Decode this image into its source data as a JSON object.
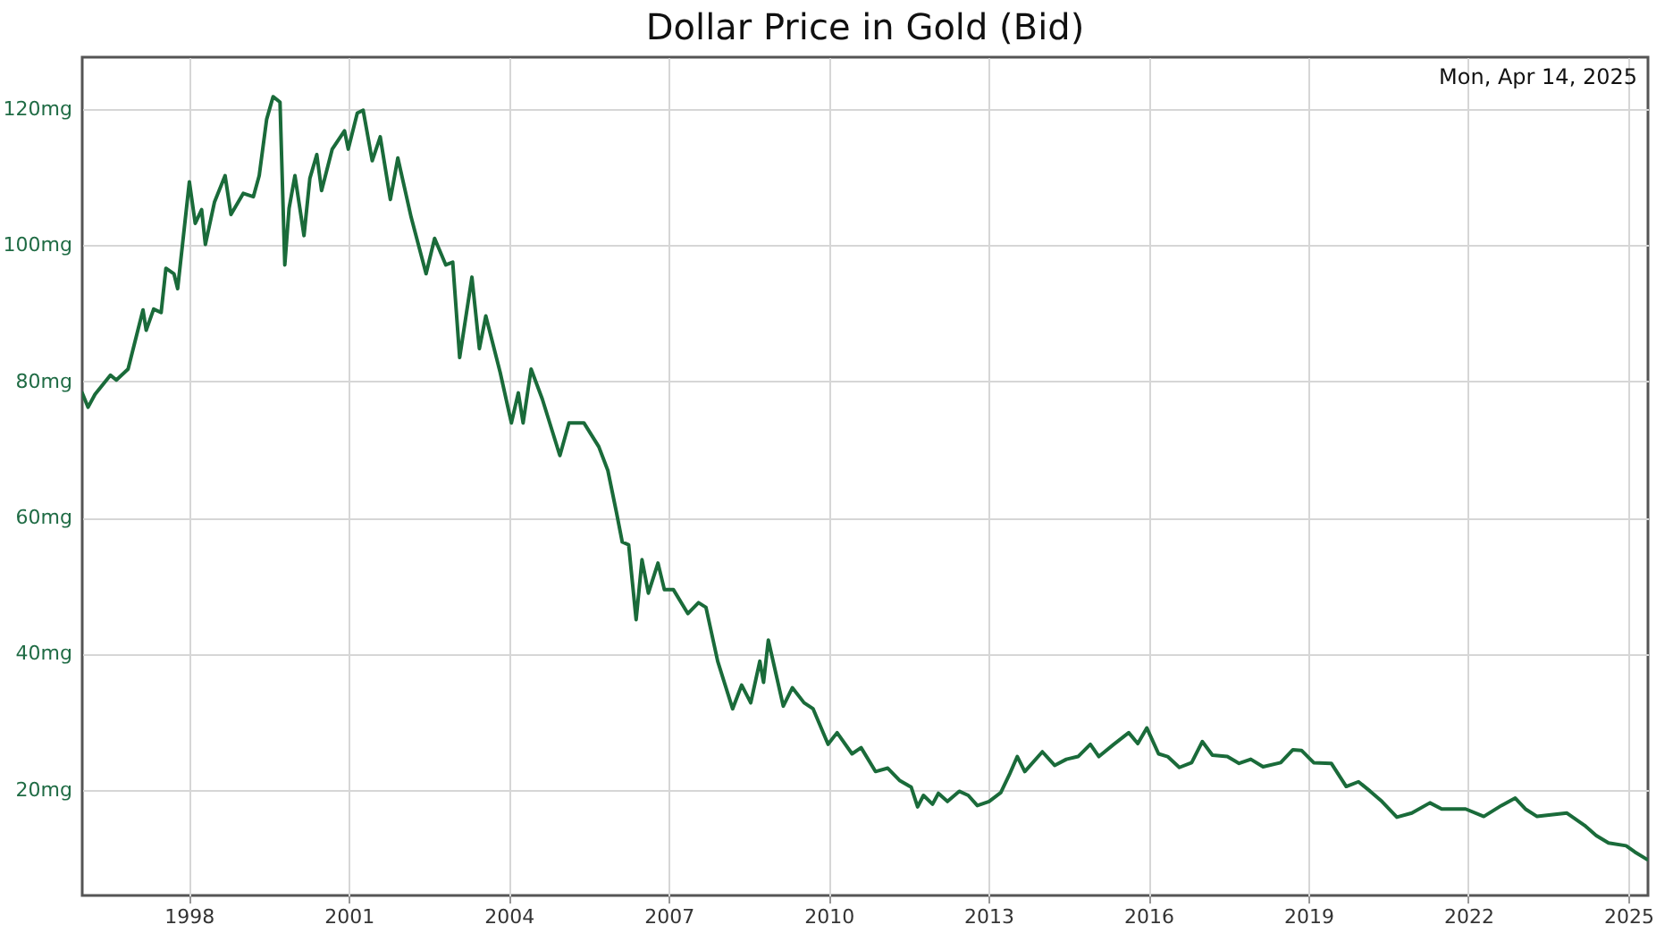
{
  "chart_data": {
    "type": "line",
    "title": "Dollar Price in Gold (Bid)",
    "annotations": [
      "Mon, Apr 14, 2025"
    ],
    "x": [
      1996.0,
      1996.11,
      1996.24,
      1996.53,
      1996.64,
      1996.86,
      1997.14,
      1997.2,
      1997.34,
      1997.48,
      1997.57,
      1997.72,
      1997.79,
      1998.01,
      1998.12,
      1998.24,
      1998.31,
      1998.48,
      1998.68,
      1998.79,
      1999.02,
      1999.21,
      1999.32,
      1999.46,
      1999.58,
      1999.71,
      1999.8,
      1999.88,
      1999.99,
      2000.16,
      2000.27,
      2000.4,
      2000.49,
      2000.69,
      2000.92,
      2000.99,
      2001.16,
      2001.27,
      2001.44,
      2001.59,
      2001.78,
      2001.92,
      2002.17,
      2002.45,
      2002.61,
      2002.82,
      2002.95,
      2003.08,
      2003.31,
      2003.45,
      2003.57,
      2003.84,
      2004.05,
      2004.18,
      2004.27,
      2004.42,
      2004.63,
      2004.96,
      2005.13,
      2005.41,
      2005.69,
      2005.86,
      2006.02,
      2006.13,
      2006.25,
      2006.39,
      2006.5,
      2006.62,
      2006.8,
      2006.92,
      2007.09,
      2007.36,
      2007.56,
      2007.7,
      2007.92,
      2008.2,
      2008.37,
      2008.54,
      2008.71,
      2008.78,
      2008.87,
      2009.15,
      2009.32,
      2009.54,
      2009.71,
      2009.99,
      2010.16,
      2010.44,
      2010.61,
      2010.88,
      2011.11,
      2011.33,
      2011.55,
      2011.67,
      2011.78,
      2011.95,
      2012.06,
      2012.23,
      2012.45,
      2012.62,
      2012.79,
      2013.01,
      2013.23,
      2013.4,
      2013.54,
      2013.68,
      2014.01,
      2014.24,
      2014.46,
      2014.68,
      2014.91,
      2015.07,
      2015.35,
      2015.63,
      2015.8,
      2015.97,
      2016.19,
      2016.36,
      2016.58,
      2016.81,
      2017.01,
      2017.2,
      2017.48,
      2017.7,
      2017.92,
      2018.15,
      2018.48,
      2018.71,
      2018.87,
      2019.1,
      2019.43,
      2019.71,
      2019.94,
      2020.16,
      2020.38,
      2020.66,
      2020.94,
      2021.28,
      2021.5,
      2021.95,
      2022.29,
      2022.62,
      2022.88,
      2023.07,
      2023.29,
      2023.51,
      2023.85,
      2024.18,
      2024.4,
      2024.63,
      2024.96,
      2025.12,
      2025.35
    ],
    "series": [
      {
        "color": "#1a6b3a",
        "values": [
          78.3,
          76.2,
          78.1,
          80.9,
          80.2,
          81.8,
          90.5,
          87.5,
          90.6,
          90.1,
          96.6,
          95.8,
          93.6,
          109.3,
          103.2,
          105.2,
          100.1,
          106.3,
          110.2,
          104.5,
          107.6,
          107.1,
          110.2,
          118.5,
          121.8,
          121.0,
          97.1,
          105.4,
          110.2,
          101.4,
          109.8,
          113.3,
          108.0,
          114.1,
          116.8,
          114.1,
          119.4,
          119.8,
          112.4,
          115.9,
          106.7,
          112.8,
          104.1,
          95.8,
          101.0,
          97.1,
          97.5,
          83.5,
          95.3,
          84.8,
          89.6,
          81.3,
          73.9,
          78.3,
          73.9,
          81.8,
          77.4,
          69.1,
          73.9,
          73.9,
          70.4,
          66.9,
          60.8,
          56.4,
          56.0,
          45.0,
          53.8,
          48.9,
          53.3,
          49.4,
          49.4,
          45.9,
          47.5,
          46.8,
          38.9,
          31.9,
          35.4,
          32.8,
          38.9,
          35.8,
          42.0,
          32.3,
          35.0,
          32.8,
          31.9,
          26.7,
          28.4,
          25.3,
          26.2,
          22.7,
          23.2,
          21.4,
          20.4,
          17.5,
          19.2,
          17.9,
          19.5,
          18.3,
          19.8,
          19.2,
          17.7,
          18.3,
          19.6,
          22.4,
          24.9,
          22.7,
          25.6,
          23.6,
          24.5,
          24.9,
          26.7,
          24.9,
          26.7,
          28.4,
          26.8,
          29.1,
          25.3,
          24.9,
          23.3,
          24.0,
          27.1,
          25.1,
          24.9,
          23.9,
          24.5,
          23.4,
          24.0,
          25.9,
          25.8,
          24.0,
          23.9,
          20.5,
          21.2,
          19.8,
          18.3,
          16.0,
          16.6,
          18.1,
          17.2,
          17.2,
          16.1,
          17.7,
          18.8,
          17.2,
          16.1,
          16.3,
          16.6,
          14.8,
          13.3,
          12.2,
          11.8,
          10.9,
          9.8
        ]
      }
    ],
    "xlim": [
      1996.0,
      2025.37
    ],
    "xticks": [
      1998,
      2001,
      2004,
      2007,
      2010,
      2013,
      2016,
      2019,
      2022,
      2025
    ],
    "ylim": [
      4.5,
      127.6
    ],
    "yticks": [
      {
        "value": 20,
        "label": "20mg"
      },
      {
        "value": 40,
        "label": "40mg"
      },
      {
        "value": 60,
        "label": "60mg"
      },
      {
        "value": 80,
        "label": "80mg"
      },
      {
        "value": 100,
        "label": "100mg"
      },
      {
        "value": 120,
        "label": "120mg"
      }
    ],
    "grid": true,
    "marker": "none",
    "line_style": "solid"
  }
}
